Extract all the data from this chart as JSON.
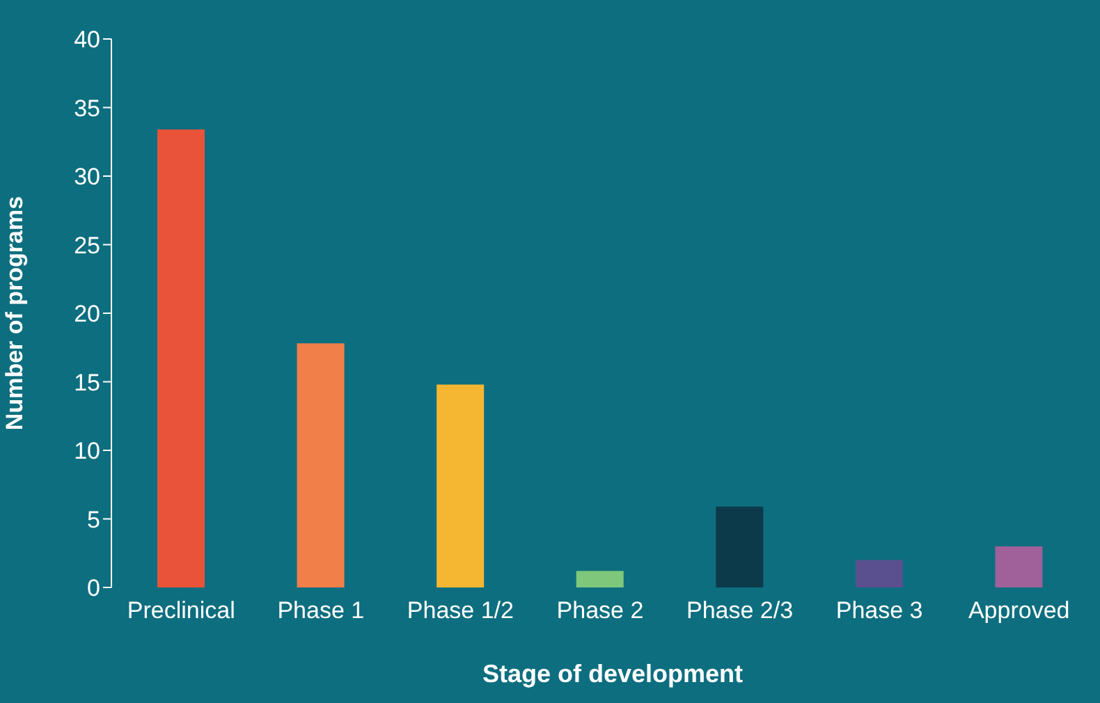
{
  "chart_data": {
    "type": "bar",
    "xlabel": "Stage of development",
    "ylabel": "Number of programs",
    "categories": [
      "Preclinical",
      "Phase 1",
      "Phase 1/2",
      "Phase 2",
      "Phase 2/3",
      "Phase 3",
      "Approved"
    ],
    "values": [
      33.4,
      17.8,
      14.8,
      1.2,
      5.9,
      2,
      3
    ],
    "colors": [
      "#e8533a",
      "#f07f4a",
      "#f5b731",
      "#7fc77a",
      "#0d3a4a",
      "#5a4f8f",
      "#a0609a"
    ],
    "ylim": [
      0,
      40
    ],
    "yticks": [
      0,
      5,
      10,
      15,
      20,
      25,
      30,
      35,
      40
    ],
    "grid": false,
    "legend": false
  }
}
